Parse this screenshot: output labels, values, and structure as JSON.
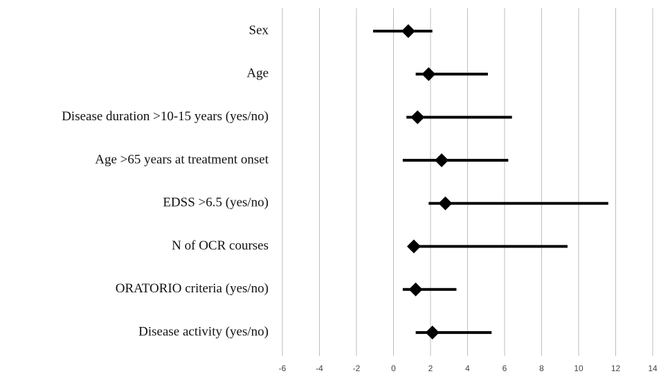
{
  "chart_data": {
    "type": "forest",
    "categories": [
      "Sex",
      "Age",
      "Disease duration >10-15 years (yes/no)",
      "Age >65 years at treatment onset",
      "EDSS >6.5 (yes/no)",
      "N of OCR courses",
      "ORATORIO criteria (yes/no)",
      "Disease activity (yes/no)"
    ],
    "values": [
      0.8,
      1.9,
      1.3,
      2.6,
      2.8,
      1.1,
      1.2,
      2.1
    ],
    "lower": [
      -1.1,
      1.2,
      0.7,
      0.5,
      1.9,
      0.9,
      0.5,
      1.2
    ],
    "upper": [
      2.1,
      5.1,
      6.4,
      6.2,
      11.6,
      9.4,
      3.4,
      5.3
    ],
    "color": "#000000",
    "xlim": [
      -6,
      14
    ],
    "xticks": [
      -6,
      -4,
      -2,
      0,
      2,
      4,
      6,
      8,
      10,
      12,
      14
    ],
    "grid": true
  }
}
